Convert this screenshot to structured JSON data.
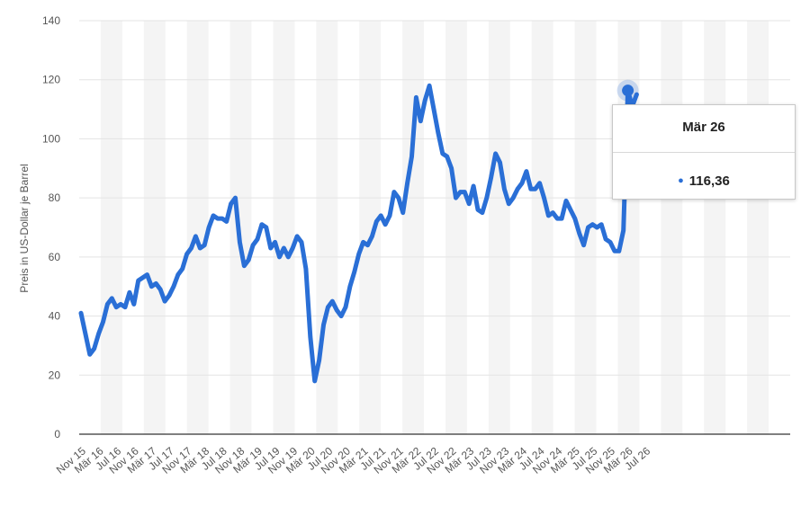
{
  "chart_data": {
    "type": "line",
    "ylabel": "Preis in US-Dollar je Barrel",
    "ylim": [
      0,
      140
    ],
    "yticks": [
      0,
      20,
      40,
      60,
      80,
      100,
      120,
      140
    ],
    "grid": true,
    "line_color": "#2a6fd6",
    "x_tick_labels": [
      "Nov 15",
      "Mär 16",
      "Jul 16",
      "Nov 16",
      "Mär 17",
      "Jul 17",
      "Nov 17",
      "Mär 18",
      "Jul 18",
      "Nov 18",
      "Mär 19",
      "Jul 19",
      "Nov 19",
      "Mär 20",
      "Jul 20",
      "Nov 20",
      "Mär 21",
      "Jul 21",
      "Nov 21",
      "Mär 22",
      "Jul 22",
      "Nov 22",
      "Mär 23",
      "Jul 23",
      "Nov 23",
      "Mär 24",
      "Jul 24",
      "Nov 24",
      "Mär 25",
      "Jul 25",
      "Nov 25",
      "Mär 26",
      "Jul 26"
    ],
    "series": [
      {
        "values": [
          {
            "x": "Nov 15",
            "y": 41
          },
          {
            "x": "Dez 15",
            "y": 34
          },
          {
            "x": "Jan 16",
            "y": 27
          },
          {
            "x": "Feb 16",
            "y": 29
          },
          {
            "x": "Mär 16",
            "y": 34
          },
          {
            "x": "Apr 16",
            "y": 38
          },
          {
            "x": "Mai 16",
            "y": 44
          },
          {
            "x": "Jun 16",
            "y": 46
          },
          {
            "x": "Jul 16",
            "y": 43
          },
          {
            "x": "Aug 16",
            "y": 44
          },
          {
            "x": "Sep 16",
            "y": 43
          },
          {
            "x": "Okt 16",
            "y": 48
          },
          {
            "x": "Nov 16",
            "y": 44
          },
          {
            "x": "Dez 16",
            "y": 52
          },
          {
            "x": "Jan 17",
            "y": 53
          },
          {
            "x": "Feb 17",
            "y": 54
          },
          {
            "x": "Mär 17",
            "y": 50
          },
          {
            "x": "Apr 17",
            "y": 51
          },
          {
            "x": "Mai 17",
            "y": 49
          },
          {
            "x": "Jun 17",
            "y": 45
          },
          {
            "x": "Jul 17",
            "y": 47
          },
          {
            "x": "Aug 17",
            "y": 50
          },
          {
            "x": "Sep 17",
            "y": 54
          },
          {
            "x": "Okt 17",
            "y": 56
          },
          {
            "x": "Nov 17",
            "y": 61
          },
          {
            "x": "Dez 17",
            "y": 63
          },
          {
            "x": "Jan 18",
            "y": 67
          },
          {
            "x": "Feb 18",
            "y": 63
          },
          {
            "x": "Mär 18",
            "y": 64
          },
          {
            "x": "Apr 18",
            "y": 70
          },
          {
            "x": "Mai 18",
            "y": 74
          },
          {
            "x": "Jun 18",
            "y": 73
          },
          {
            "x": "Jul 18",
            "y": 73
          },
          {
            "x": "Aug 18",
            "y": 72
          },
          {
            "x": "Sep 18",
            "y": 78
          },
          {
            "x": "Okt 18",
            "y": 80
          },
          {
            "x": "Nov 18",
            "y": 65
          },
          {
            "x": "Dez 18",
            "y": 57
          },
          {
            "x": "Jan 19",
            "y": 59
          },
          {
            "x": "Feb 19",
            "y": 64
          },
          {
            "x": "Mär 19",
            "y": 66
          },
          {
            "x": "Apr 19",
            "y": 71
          },
          {
            "x": "Mai 19",
            "y": 70
          },
          {
            "x": "Jun 19",
            "y": 63
          },
          {
            "x": "Jul 19",
            "y": 65
          },
          {
            "x": "Aug 19",
            "y": 60
          },
          {
            "x": "Sep 19",
            "y": 63
          },
          {
            "x": "Okt 19",
            "y": 60
          },
          {
            "x": "Nov 19",
            "y": 63
          },
          {
            "x": "Dez 19",
            "y": 67
          },
          {
            "x": "Jan 20",
            "y": 65
          },
          {
            "x": "Feb 20",
            "y": 56
          },
          {
            "x": "Mär 20",
            "y": 33
          },
          {
            "x": "Apr 20",
            "y": 18
          },
          {
            "x": "Mai 20",
            "y": 25
          },
          {
            "x": "Jun 20",
            "y": 37
          },
          {
            "x": "Jul 20",
            "y": 43
          },
          {
            "x": "Aug 20",
            "y": 45
          },
          {
            "x": "Sep 20",
            "y": 42
          },
          {
            "x": "Okt 20",
            "y": 40
          },
          {
            "x": "Nov 20",
            "y": 43
          },
          {
            "x": "Dez 20",
            "y": 50
          },
          {
            "x": "Jan 21",
            "y": 55
          },
          {
            "x": "Feb 21",
            "y": 61
          },
          {
            "x": "Mär 21",
            "y": 65
          },
          {
            "x": "Apr 21",
            "y": 64
          },
          {
            "x": "Mai 21",
            "y": 67
          },
          {
            "x": "Jun 21",
            "y": 72
          },
          {
            "x": "Jul 21",
            "y": 74
          },
          {
            "x": "Aug 21",
            "y": 71
          },
          {
            "x": "Sep 21",
            "y": 74
          },
          {
            "x": "Okt 21",
            "y": 82
          },
          {
            "x": "Nov 21",
            "y": 80
          },
          {
            "x": "Dez 21",
            "y": 75
          },
          {
            "x": "Jan 22",
            "y": 85
          },
          {
            "x": "Feb 22",
            "y": 94
          },
          {
            "x": "Mär 22",
            "y": 114
          },
          {
            "x": "Apr 22",
            "y": 106
          },
          {
            "x": "Mai 22",
            "y": 113
          },
          {
            "x": "Jun 22",
            "y": 118
          },
          {
            "x": "Jul 22",
            "y": 110
          },
          {
            "x": "Aug 22",
            "y": 102
          },
          {
            "x": "Sep 22",
            "y": 95
          },
          {
            "x": "Okt 22",
            "y": 94
          },
          {
            "x": "Nov 22",
            "y": 90
          },
          {
            "x": "Dez 22",
            "y": 80
          },
          {
            "x": "Jan 23",
            "y": 82
          },
          {
            "x": "Feb 23",
            "y": 82
          },
          {
            "x": "Mär 23",
            "y": 78
          },
          {
            "x": "Apr 23",
            "y": 84
          },
          {
            "x": "Mai 23",
            "y": 76
          },
          {
            "x": "Jun 23",
            "y": 75
          },
          {
            "x": "Jul 23",
            "y": 80
          },
          {
            "x": "Aug 23",
            "y": 87
          },
          {
            "x": "Sep 23",
            "y": 95
          },
          {
            "x": "Okt 23",
            "y": 92
          },
          {
            "x": "Nov 23",
            "y": 83
          },
          {
            "x": "Dez 23",
            "y": 78
          },
          {
            "x": "Jan 24",
            "y": 80
          },
          {
            "x": "Feb 24",
            "y": 83
          },
          {
            "x": "Mär 24",
            "y": 85
          },
          {
            "x": "Apr 24",
            "y": 89
          },
          {
            "x": "Mai 24",
            "y": 83
          },
          {
            "x": "Jun 24",
            "y": 83
          },
          {
            "x": "Jul 24",
            "y": 85
          },
          {
            "x": "Aug 24",
            "y": 80
          },
          {
            "x": "Sep 24",
            "y": 74
          },
          {
            "x": "Okt 24",
            "y": 75
          },
          {
            "x": "Nov 24",
            "y": 73
          },
          {
            "x": "Dez 24",
            "y": 73
          },
          {
            "x": "Jan 25",
            "y": 79
          },
          {
            "x": "Feb 25",
            "y": 76
          },
          {
            "x": "Mär 25",
            "y": 73
          },
          {
            "x": "Apr 25",
            "y": 68
          },
          {
            "x": "Mai 25",
            "y": 64
          },
          {
            "x": "Jun 25",
            "y": 70
          },
          {
            "x": "Jul 25",
            "y": 71
          },
          {
            "x": "Aug 25",
            "y": 70
          },
          {
            "x": "Sep 25",
            "y": 71
          },
          {
            "x": "Okt 25",
            "y": 66
          },
          {
            "x": "Nov 25",
            "y": 65
          },
          {
            "x": "Dez 25",
            "y": 62
          },
          {
            "x": "Jan 26",
            "y": 62
          },
          {
            "x": "Feb 26",
            "y": 69
          },
          {
            "x": "Mär 26",
            "y": 116.36
          },
          {
            "x": "Apr 26",
            "y": 111
          },
          {
            "x": "Mai 26",
            "y": 115
          }
        ]
      }
    ],
    "highlight": {
      "x": "Mär 26",
      "y": 116.36
    }
  },
  "tooltip": {
    "title": "Mär 26",
    "value": "116,36"
  }
}
